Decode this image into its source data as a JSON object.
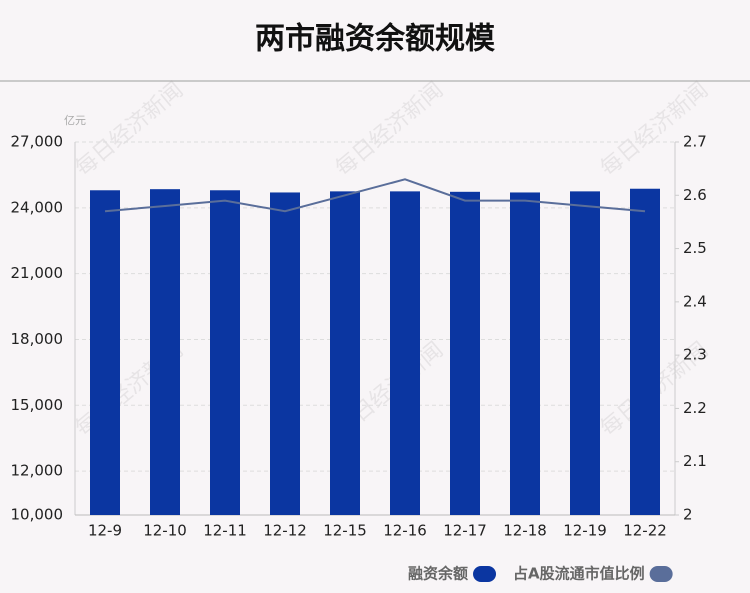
{
  "chart_data": {
    "type": "bar-line",
    "title": "两市融资余额规模",
    "y_unit": "亿元",
    "watermark": "每日经济新闻",
    "categories": [
      "12-9",
      "12-10",
      "12-11",
      "12-12",
      "12-15",
      "12-16",
      "12-17",
      "12-18",
      "12-19",
      "12-22"
    ],
    "series": [
      {
        "name": "融资余额",
        "color": "#0b36a1",
        "values": [
          24800,
          24850,
          24800,
          24700,
          24750,
          24750,
          24730,
          24700,
          24750,
          24870
        ]
      },
      {
        "name": "占A股流通市值比例",
        "color": "#5a6e9a",
        "axis": "y2",
        "values": [
          2.57,
          2.58,
          2.59,
          2.57,
          2.6,
          2.63,
          2.59,
          2.59,
          2.58,
          2.57
        ]
      }
    ],
    "ylim": [
      10000,
      27000
    ],
    "yticks": [
      {
        "value": 10000,
        "label": "10,000"
      },
      {
        "value": 12000,
        "label": "12,000"
      },
      {
        "value": 15000,
        "label": "15,000"
      },
      {
        "value": 18000,
        "label": "18,000"
      },
      {
        "value": 21000,
        "label": "21,000"
      },
      {
        "value": 24000,
        "label": "24,000"
      },
      {
        "value": 27000,
        "label": "27,000"
      }
    ],
    "y2lim": [
      2,
      2.7
    ],
    "y2ticks": [
      2,
      2.1,
      2.2,
      2.3,
      2.4,
      2.5,
      2.6,
      2.7
    ],
    "grid": true
  }
}
